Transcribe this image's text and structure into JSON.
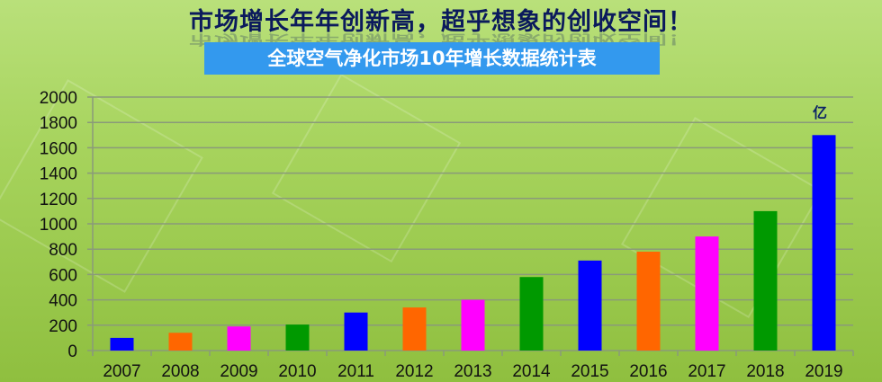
{
  "header": {
    "title": "市场增长年年创新高，超乎想象的创收空间！",
    "subtitle": "全球空气净化市场10年增长数据统计表"
  },
  "chart_data": {
    "type": "bar",
    "title": "全球空气净化市场10年增长数据统计表",
    "unit_label": "亿",
    "categories": [
      "2007",
      "2008",
      "2009",
      "2010",
      "2011",
      "2012",
      "2013",
      "2014",
      "2015",
      "2016",
      "2017",
      "2018",
      "2019"
    ],
    "values": [
      100,
      140,
      190,
      205,
      300,
      340,
      400,
      580,
      710,
      780,
      900,
      1100,
      1700
    ],
    "bar_colors": [
      "#0000ff",
      "#ff6600",
      "#ff00ff",
      "#009900",
      "#0000ff",
      "#ff6600",
      "#ff00ff",
      "#009900",
      "#0000ff",
      "#ff6600",
      "#ff00ff",
      "#009900",
      "#0000ff"
    ],
    "ylim": [
      0,
      2000
    ],
    "yticks": [
      0,
      200,
      400,
      600,
      800,
      1000,
      1200,
      1400,
      1600,
      1800,
      2000
    ],
    "grid": true,
    "xlabel": "",
    "ylabel": ""
  }
}
